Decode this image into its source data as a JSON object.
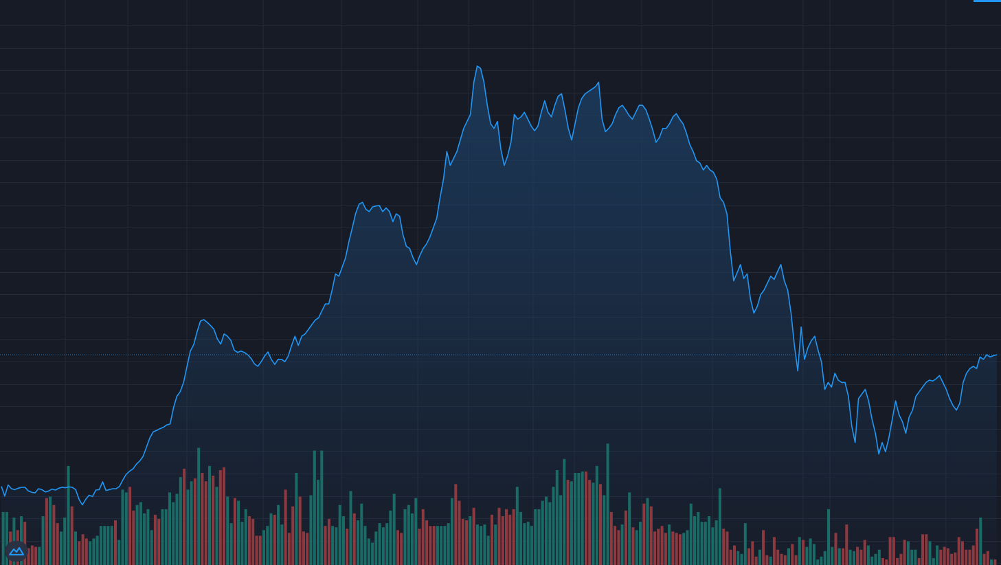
{
  "theme": {
    "background": "#171b26",
    "grid": "#242937",
    "line": "#2196f3",
    "area_top": "#1d4168",
    "up_volume": "#1a6b66",
    "down_volume": "#8c3a40",
    "last_price_line": "#2a78b8",
    "logo_bg": "#2a3142",
    "logo_fg": "#2196f3"
  },
  "icons": {
    "logo": "tradingview-logo-icon"
  },
  "chart_data": {
    "type": "area",
    "title": "",
    "xlabel": "",
    "ylabel": "",
    "grid": true,
    "legend": "none",
    "ylim": [
      0,
      100
    ],
    "volume_ylim": [
      0,
      100
    ],
    "price": [
      7.5,
      5.4,
      7.8,
      7.0,
      6.8,
      7.1,
      7.3,
      7.3,
      6.5,
      6.2,
      6.1,
      7.0,
      6.8,
      6.3,
      6.5,
      6.9,
      6.7,
      7.1,
      7.3,
      7.2,
      7.4,
      7.3,
      6.8,
      4.7,
      3.5,
      4.7,
      5.6,
      5.3,
      6.7,
      6.8,
      8.5,
      6.6,
      6.8,
      7.0,
      7.0,
      7.5,
      8.9,
      10.1,
      10.8,
      11.3,
      12.3,
      13.0,
      14.0,
      16.0,
      18.0,
      19.3,
      19.6,
      20.0,
      20.3,
      20.8,
      21.0,
      24.5,
      27.0,
      28.0,
      30.0,
      33.5,
      36.8,
      38.2,
      41.0,
      43.3,
      43.6,
      43.0,
      42.3,
      41.5,
      39.4,
      38.3,
      40.5,
      40.0,
      39.1,
      37.0,
      36.5,
      36.8,
      36.5,
      36.0,
      35.2,
      34.0,
      33.5,
      34.5,
      35.7,
      36.6,
      35.0,
      33.9,
      35.0,
      35.0,
      34.5,
      35.7,
      38.0,
      40.0,
      38.0,
      40.0,
      40.5,
      41.5,
      42.5,
      43.5,
      44.0,
      45.5,
      47.0,
      47.0,
      50.0,
      53.5,
      53.0,
      55.0,
      57.0,
      60.5,
      63.5,
      66.6,
      68.6,
      69.0,
      67.5,
      67.0,
      68.0,
      68.2,
      68.3,
      67.0,
      67.8,
      67.0,
      64.8,
      66.5,
      66.0,
      62.0,
      59.5,
      59.0,
      57.0,
      55.5,
      57.5,
      59.0,
      60.0,
      61.5,
      63.5,
      65.5,
      70.0,
      74.0,
      80.0,
      77.0,
      78.5,
      80.0,
      82.5,
      85.0,
      86.5,
      88.0,
      95.0,
      98.5,
      98.0,
      95.0,
      90.0,
      86.0,
      85.0,
      86.5,
      80.5,
      77.0,
      79.0,
      82.0,
      88.0,
      87.0,
      87.5,
      88.5,
      87.0,
      85.5,
      84.5,
      85.5,
      88.5,
      91.0,
      88.5,
      87.5,
      90.0,
      92.0,
      92.5,
      89.0,
      85.0,
      82.5,
      86.0,
      89.5,
      91.5,
      92.5,
      93.0,
      93.5,
      94.0,
      95.0,
      87.0,
      84.3,
      85.0,
      86.0,
      88.0,
      89.5,
      90.0,
      89.0,
      87.8,
      87.0,
      88.5,
      90.0,
      90.0,
      89.0,
      87.0,
      84.7,
      82.0,
      83.0,
      85.0,
      85.0,
      86.0,
      87.5,
      88.2,
      87.0,
      86.0,
      84.0,
      81.5,
      80.0,
      78.0,
      77.5,
      76.0,
      77.0,
      76.0,
      75.5,
      74.0,
      70.0,
      69.0,
      66.5,
      58.5,
      52.0,
      53.7,
      55.5,
      52.5,
      53.5,
      48.0,
      45.0,
      46.5,
      49.0,
      50.0,
      51.5,
      53.0,
      52.3,
      54.0,
      55.5,
      52.0,
      50.0,
      45.0,
      38.0,
      32.5,
      42.0,
      35.0,
      37.5,
      39.0,
      40.0,
      37.0,
      34.5,
      28.5,
      30.0,
      29.0,
      32.0,
      30.5,
      30.0,
      30.0,
      27.0,
      20.5,
      17.0,
      26.5,
      27.5,
      28.5,
      26.0,
      22.0,
      19.0,
      14.5,
      17.0,
      15.0,
      18.0,
      22.0,
      26.0,
      23.0,
      21.5,
      19.0,
      22.5,
      24.0,
      27.0,
      28.0,
      29.0,
      30.0,
      30.5,
      30.3,
      30.8,
      31.5,
      30.0,
      28.5,
      26.5,
      25.0,
      24.0,
      25.5,
      30.0,
      32.0,
      33.0,
      33.5,
      33.0,
      35.5,
      35.0,
      36.0,
      35.5,
      35.8,
      36.0
    ],
    "volume": [
      [
        38,
        0
      ],
      [
        38,
        0
      ],
      [
        24,
        1
      ],
      [
        34,
        0
      ],
      [
        25,
        1
      ],
      [
        35,
        0
      ],
      [
        31,
        1
      ],
      [
        12,
        1
      ],
      [
        14,
        1
      ],
      [
        13,
        1
      ],
      [
        13,
        0
      ],
      [
        35,
        0
      ],
      [
        48,
        1
      ],
      [
        49,
        0
      ],
      [
        43,
        1
      ],
      [
        30,
        1
      ],
      [
        24,
        0
      ],
      [
        34,
        0
      ],
      [
        71,
        0
      ],
      [
        42,
        1
      ],
      [
        24,
        0
      ],
      [
        17,
        1
      ],
      [
        22,
        1
      ],
      [
        19,
        1
      ],
      [
        17,
        0
      ],
      [
        19,
        0
      ],
      [
        21,
        0
      ],
      [
        28,
        0
      ],
      [
        28,
        0
      ],
      [
        28,
        0
      ],
      [
        28,
        0
      ],
      [
        32,
        1
      ],
      [
        18,
        0
      ],
      [
        54,
        0
      ],
      [
        52,
        0
      ],
      [
        56,
        1
      ],
      [
        39,
        1
      ],
      [
        43,
        0
      ],
      [
        45,
        0
      ],
      [
        37,
        0
      ],
      [
        40,
        0
      ],
      [
        25,
        0
      ],
      [
        36,
        1
      ],
      [
        33,
        1
      ],
      [
        40,
        0
      ],
      [
        40,
        0
      ],
      [
        52,
        0
      ],
      [
        45,
        0
      ],
      [
        51,
        0
      ],
      [
        63,
        0
      ],
      [
        69,
        1
      ],
      [
        54,
        0
      ],
      [
        60,
        0
      ],
      [
        62,
        1
      ],
      [
        84,
        0
      ],
      [
        66,
        1
      ],
      [
        60,
        1
      ],
      [
        71,
        0
      ],
      [
        64,
        1
      ],
      [
        56,
        0
      ],
      [
        68,
        1
      ],
      [
        70,
        1
      ],
      [
        49,
        0
      ],
      [
        30,
        0
      ],
      [
        48,
        1
      ],
      [
        46,
        0
      ],
      [
        31,
        0
      ],
      [
        40,
        0
      ],
      [
        35,
        1
      ],
      [
        33,
        1
      ],
      [
        21,
        1
      ],
      [
        21,
        1
      ],
      [
        25,
        0
      ],
      [
        28,
        0
      ],
      [
        37,
        0
      ],
      [
        36,
        1
      ],
      [
        43,
        0
      ],
      [
        29,
        0
      ],
      [
        54,
        1
      ],
      [
        23,
        1
      ],
      [
        42,
        1
      ],
      [
        66,
        0
      ],
      [
        49,
        1
      ],
      [
        24,
        1
      ],
      [
        23,
        1
      ],
      [
        50,
        0
      ],
      [
        82,
        0
      ],
      [
        61,
        0
      ],
      [
        82,
        0
      ],
      [
        28,
        1
      ],
      [
        33,
        1
      ],
      [
        28,
        0
      ],
      [
        27,
        0
      ],
      [
        43,
        0
      ],
      [
        35,
        0
      ],
      [
        26,
        1
      ],
      [
        53,
        0
      ],
      [
        37,
        1
      ],
      [
        32,
        0
      ],
      [
        44,
        0
      ],
      [
        28,
        0
      ],
      [
        19,
        0
      ],
      [
        16,
        0
      ],
      [
        24,
        0
      ],
      [
        30,
        0
      ],
      [
        27,
        0
      ],
      [
        30,
        0
      ],
      [
        39,
        0
      ],
      [
        51,
        0
      ],
      [
        25,
        1
      ],
      [
        23,
        1
      ],
      [
        40,
        0
      ],
      [
        43,
        0
      ],
      [
        37,
        0
      ],
      [
        48,
        0
      ],
      [
        26,
        1
      ],
      [
        40,
        1
      ],
      [
        32,
        1
      ],
      [
        28,
        1
      ],
      [
        28,
        1
      ],
      [
        28,
        0
      ],
      [
        28,
        0
      ],
      [
        28,
        0
      ],
      [
        30,
        0
      ],
      [
        48,
        0
      ],
      [
        58,
        1
      ],
      [
        46,
        1
      ],
      [
        33,
        1
      ],
      [
        32,
        1
      ],
      [
        35,
        0
      ],
      [
        41,
        1
      ],
      [
        29,
        0
      ],
      [
        28,
        0
      ],
      [
        29,
        0
      ],
      [
        21,
        0
      ],
      [
        36,
        1
      ],
      [
        29,
        0
      ],
      [
        41,
        1
      ],
      [
        35,
        1
      ],
      [
        40,
        1
      ],
      [
        36,
        1
      ],
      [
        40,
        1
      ],
      [
        56,
        0
      ],
      [
        38,
        0
      ],
      [
        30,
        0
      ],
      [
        31,
        0
      ],
      [
        28,
        0
      ],
      [
        40,
        0
      ],
      [
        40,
        0
      ],
      [
        46,
        0
      ],
      [
        49,
        0
      ],
      [
        45,
        0
      ],
      [
        56,
        0
      ],
      [
        68,
        0
      ],
      [
        50,
        0
      ],
      [
        76,
        0
      ],
      [
        61,
        1
      ],
      [
        60,
        0
      ],
      [
        66,
        0
      ],
      [
        66,
        0
      ],
      [
        67,
        0
      ],
      [
        67,
        1
      ],
      [
        61,
        1
      ],
      [
        59,
        0
      ],
      [
        71,
        0
      ],
      [
        58,
        1
      ],
      [
        50,
        0
      ],
      [
        87,
        0
      ],
      [
        38,
        1
      ],
      [
        28,
        1
      ],
      [
        25,
        1
      ],
      [
        29,
        0
      ],
      [
        39,
        1
      ],
      [
        52,
        0
      ],
      [
        27,
        1
      ],
      [
        25,
        0
      ],
      [
        31,
        0
      ],
      [
        44,
        1
      ],
      [
        48,
        0
      ],
      [
        42,
        1
      ],
      [
        24,
        1
      ],
      [
        26,
        1
      ],
      [
        28,
        1
      ],
      [
        23,
        1
      ],
      [
        29,
        0
      ],
      [
        24,
        1
      ],
      [
        23,
        1
      ],
      [
        22,
        1
      ],
      [
        23,
        0
      ],
      [
        25,
        0
      ],
      [
        44,
        0
      ],
      [
        35,
        0
      ],
      [
        38,
        0
      ],
      [
        31,
        0
      ],
      [
        31,
        0
      ],
      [
        35,
        0
      ],
      [
        27,
        0
      ],
      [
        32,
        0
      ],
      [
        55,
        0
      ],
      [
        26,
        1
      ],
      [
        24,
        1
      ],
      [
        11,
        1
      ],
      [
        14,
        1
      ],
      [
        10,
        0
      ],
      [
        8,
        0
      ],
      [
        30,
        0
      ],
      [
        12,
        1
      ],
      [
        17,
        1
      ],
      [
        6,
        1
      ],
      [
        11,
        0
      ],
      [
        25,
        1
      ],
      [
        7,
        1
      ],
      [
        6,
        0
      ],
      [
        20,
        1
      ],
      [
        11,
        1
      ],
      [
        8,
        1
      ],
      [
        7,
        1
      ],
      [
        12,
        0
      ],
      [
        15,
        1
      ],
      [
        7,
        1
      ],
      [
        20,
        0
      ],
      [
        18,
        1
      ],
      [
        13,
        0
      ],
      [
        19,
        0
      ],
      [
        15,
        0
      ],
      [
        4,
        0
      ],
      [
        6,
        0
      ],
      [
        10,
        0
      ],
      [
        40,
        0
      ],
      [
        13,
        0
      ],
      [
        23,
        1
      ],
      [
        12,
        0
      ],
      [
        12,
        1
      ],
      [
        29,
        1
      ],
      [
        11,
        0
      ],
      [
        10,
        0
      ],
      [
        13,
        1
      ],
      [
        11,
        1
      ],
      [
        18,
        1
      ],
      [
        14,
        0
      ],
      [
        6,
        0
      ],
      [
        8,
        0
      ],
      [
        11,
        0
      ],
      [
        5,
        1
      ],
      [
        4,
        1
      ],
      [
        20,
        1
      ],
      [
        20,
        1
      ],
      [
        5,
        1
      ],
      [
        8,
        1
      ],
      [
        18,
        1
      ],
      [
        17,
        0
      ],
      [
        11,
        0
      ],
      [
        11,
        0
      ],
      [
        5,
        1
      ],
      [
        22,
        1
      ],
      [
        22,
        1
      ],
      [
        17,
        0
      ],
      [
        5,
        0
      ],
      [
        14,
        0
      ],
      [
        11,
        1
      ],
      [
        13,
        1
      ],
      [
        12,
        1
      ],
      [
        8,
        1
      ],
      [
        9,
        1
      ],
      [
        20,
        1
      ],
      [
        17,
        1
      ],
      [
        11,
        1
      ],
      [
        11,
        1
      ],
      [
        14,
        1
      ],
      [
        26,
        1
      ],
      [
        34,
        0
      ],
      [
        8,
        1
      ],
      [
        10,
        1
      ],
      [
        4,
        0
      ],
      [
        4,
        1
      ]
    ]
  }
}
